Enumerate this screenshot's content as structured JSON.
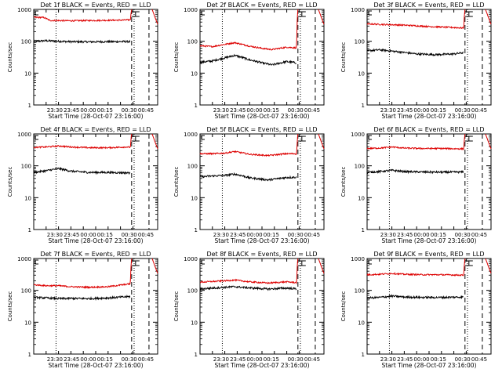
{
  "figure": {
    "background": "#ffffff",
    "colors": {
      "events": "#000000",
      "lld": "#dd0000",
      "axes": "#000000"
    }
  },
  "chart_data": [
    {
      "type": "line",
      "title": "Det 1f BLACK = Events, RED = LLD",
      "xlabel": "Start Time (28-Oct-07 23:16:00)",
      "ylabel": "Counts/sec",
      "yscale": "log",
      "ylim": [
        1,
        1000
      ],
      "yticks": [
        "1",
        "10",
        "100",
        "1000"
      ],
      "xticks": [
        "23:30",
        "23:45",
        "00:00",
        "00:15",
        "00:30",
        "00:45"
      ],
      "series": [
        {
          "role": "events",
          "color": "#000000",
          "points": [
            [
              0.0,
              100
            ],
            [
              0.1,
              104
            ],
            [
              0.2,
              100
            ],
            [
              0.3,
              97
            ],
            [
              0.45,
              96
            ],
            [
              0.6,
              97
            ],
            [
              0.78,
              98
            ]
          ]
        },
        {
          "role": "lld",
          "color": "#dd0000",
          "points": [
            [
              0.0,
              560
            ],
            [
              0.08,
              560
            ],
            [
              0.13,
              450
            ],
            [
              0.3,
              440
            ],
            [
              0.5,
              450
            ],
            [
              0.7,
              460
            ],
            [
              0.78,
              470
            ],
            [
              0.79,
              1000
            ]
          ]
        }
      ]
    },
    {
      "type": "line",
      "title": "Det 2f BLACK = Events, RED = LLD",
      "xlabel": "Start Time (28-Oct-07 23:16:00)",
      "ylabel": "Counts/sec",
      "yscale": "log",
      "ylim": [
        1,
        1000
      ],
      "yticks": [
        "1",
        "10",
        "100",
        "1000"
      ],
      "xticks": [
        "23:30",
        "23:45",
        "00:00",
        "00:15",
        "00:30",
        "00:45"
      ],
      "series": [
        {
          "role": "events",
          "color": "#000000",
          "points": [
            [
              0.0,
              22
            ],
            [
              0.1,
              24
            ],
            [
              0.2,
              30
            ],
            [
              0.28,
              36
            ],
            [
              0.4,
              26
            ],
            [
              0.5,
              21
            ],
            [
              0.58,
              18
            ],
            [
              0.7,
              23
            ],
            [
              0.78,
              21
            ]
          ]
        },
        {
          "role": "lld",
          "color": "#dd0000",
          "points": [
            [
              0.0,
              72
            ],
            [
              0.1,
              68
            ],
            [
              0.2,
              80
            ],
            [
              0.28,
              90
            ],
            [
              0.4,
              70
            ],
            [
              0.5,
              60
            ],
            [
              0.58,
              55
            ],
            [
              0.7,
              65
            ],
            [
              0.78,
              62
            ],
            [
              0.79,
              1000
            ]
          ]
        }
      ]
    },
    {
      "type": "line",
      "title": "Det 3f BLACK = Events, RED = LLD",
      "xlabel": "Start Time (28-Oct-07 23:16:00)",
      "ylabel": "Counts/sec",
      "yscale": "log",
      "ylim": [
        1,
        1000
      ],
      "yticks": [
        "1",
        "10",
        "100",
        "1000"
      ],
      "xticks": [
        "23:30",
        "23:45",
        "00:00",
        "00:15",
        "00:30",
        "00:45"
      ],
      "series": [
        {
          "role": "events",
          "color": "#000000",
          "points": [
            [
              0.0,
              50
            ],
            [
              0.1,
              54
            ],
            [
              0.22,
              48
            ],
            [
              0.4,
              40
            ],
            [
              0.55,
              38
            ],
            [
              0.7,
              40
            ],
            [
              0.78,
              44
            ]
          ]
        },
        {
          "role": "lld",
          "color": "#dd0000",
          "points": [
            [
              0.0,
              350
            ],
            [
              0.1,
              340
            ],
            [
              0.3,
              320
            ],
            [
              0.5,
              290
            ],
            [
              0.7,
              270
            ],
            [
              0.78,
              260
            ],
            [
              0.79,
              1000
            ]
          ]
        }
      ]
    },
    {
      "type": "line",
      "title": "Det 4f BLACK = Events, RED = LLD",
      "xlabel": "Start Time (28-Oct-07 23:16:00)",
      "ylabel": "Counts/sec",
      "yscale": "log",
      "ylim": [
        1,
        1000
      ],
      "yticks": [
        "1",
        "10",
        "100",
        "1000"
      ],
      "xticks": [
        "23:30",
        "23:45",
        "00:00",
        "00:15",
        "00:30",
        "00:45"
      ],
      "series": [
        {
          "role": "events",
          "color": "#000000",
          "points": [
            [
              0.0,
              62
            ],
            [
              0.1,
              70
            ],
            [
              0.2,
              82
            ],
            [
              0.3,
              68
            ],
            [
              0.45,
              62
            ],
            [
              0.6,
              62
            ],
            [
              0.78,
              60
            ]
          ]
        },
        {
          "role": "lld",
          "color": "#dd0000",
          "points": [
            [
              0.0,
              380
            ],
            [
              0.1,
              390
            ],
            [
              0.2,
              420
            ],
            [
              0.3,
              390
            ],
            [
              0.45,
              370
            ],
            [
              0.6,
              370
            ],
            [
              0.75,
              390
            ],
            [
              0.78,
              380
            ],
            [
              0.79,
              1000
            ]
          ]
        }
      ]
    },
    {
      "type": "line",
      "title": "Det 5f BLACK = Events, RED = LLD",
      "xlabel": "Start Time (28-Oct-07 23:16:00)",
      "ylabel": "Counts/sec",
      "yscale": "log",
      "ylim": [
        1,
        1000
      ],
      "yticks": [
        "1",
        "10",
        "100",
        "1000"
      ],
      "xticks": [
        "23:30",
        "23:45",
        "00:00",
        "00:15",
        "00:30",
        "00:45"
      ],
      "series": [
        {
          "role": "events",
          "color": "#000000",
          "points": [
            [
              0.0,
              45
            ],
            [
              0.1,
              48
            ],
            [
              0.2,
              50
            ],
            [
              0.28,
              55
            ],
            [
              0.4,
              42
            ],
            [
              0.55,
              36
            ],
            [
              0.7,
              43
            ],
            [
              0.78,
              44
            ]
          ]
        },
        {
          "role": "lld",
          "color": "#dd0000",
          "points": [
            [
              0.0,
              240
            ],
            [
              0.1,
              240
            ],
            [
              0.2,
              250
            ],
            [
              0.28,
              280
            ],
            [
              0.4,
              230
            ],
            [
              0.55,
              210
            ],
            [
              0.7,
              240
            ],
            [
              0.78,
              240
            ],
            [
              0.79,
              1000
            ]
          ]
        }
      ]
    },
    {
      "type": "line",
      "title": "Det 6f BLACK = Events, RED = LLD",
      "xlabel": "Start Time (28-Oct-07 23:16:00)",
      "ylabel": "Counts/sec",
      "yscale": "log",
      "ylim": [
        1,
        1000
      ],
      "yticks": [
        "1",
        "10",
        "100",
        "1000"
      ],
      "xticks": [
        "23:30",
        "23:45",
        "00:00",
        "00:15",
        "00:30",
        "00:45"
      ],
      "series": [
        {
          "role": "events",
          "color": "#000000",
          "points": [
            [
              0.0,
              62
            ],
            [
              0.1,
              66
            ],
            [
              0.2,
              72
            ],
            [
              0.3,
              66
            ],
            [
              0.45,
              64
            ],
            [
              0.6,
              63
            ],
            [
              0.78,
              64
            ]
          ]
        },
        {
          "role": "lld",
          "color": "#dd0000",
          "points": [
            [
              0.0,
              350
            ],
            [
              0.1,
              360
            ],
            [
              0.2,
              390
            ],
            [
              0.3,
              360
            ],
            [
              0.45,
              350
            ],
            [
              0.6,
              350
            ],
            [
              0.78,
              340
            ],
            [
              0.79,
              1000
            ]
          ]
        }
      ]
    },
    {
      "type": "line",
      "title": "Det 7f BLACK = Events, RED = LLD",
      "xlabel": "Start Time (28-Oct-07 23:16:00)",
      "ylabel": "Counts/sec",
      "yscale": "log",
      "ylim": [
        1,
        1000
      ],
      "yticks": [
        "1",
        "10",
        "100",
        "1000"
      ],
      "xticks": [
        "23:30",
        "23:45",
        "00:00",
        "00:15",
        "00:30",
        "00:45"
      ],
      "series": [
        {
          "role": "events",
          "color": "#000000",
          "points": [
            [
              0.0,
              60
            ],
            [
              0.1,
              58
            ],
            [
              0.2,
              55
            ],
            [
              0.3,
              56
            ],
            [
              0.45,
              55
            ],
            [
              0.6,
              58
            ],
            [
              0.78,
              64
            ]
          ]
        },
        {
          "role": "lld",
          "color": "#dd0000",
          "points": [
            [
              0.0,
              150
            ],
            [
              0.1,
              140
            ],
            [
              0.2,
              140
            ],
            [
              0.3,
              130
            ],
            [
              0.45,
              125
            ],
            [
              0.6,
              130
            ],
            [
              0.78,
              160
            ],
            [
              0.79,
              1000
            ]
          ]
        }
      ]
    },
    {
      "type": "line",
      "title": "Det 8f BLACK = Events, RED = LLD",
      "xlabel": "Start Time (28-Oct-07 23:16:00)",
      "ylabel": "Counts/sec",
      "yscale": "log",
      "ylim": [
        1,
        1000
      ],
      "yticks": [
        "1",
        "10",
        "100",
        "1000"
      ],
      "xticks": [
        "23:30",
        "23:45",
        "00:00",
        "00:15",
        "00:30",
        "00:45"
      ],
      "series": [
        {
          "role": "events",
          "color": "#000000",
          "points": [
            [
              0.0,
              110
            ],
            [
              0.1,
              118
            ],
            [
              0.2,
              125
            ],
            [
              0.28,
              130
            ],
            [
              0.4,
              120
            ],
            [
              0.55,
              110
            ],
            [
              0.7,
              118
            ],
            [
              0.78,
              112
            ]
          ]
        },
        {
          "role": "lld",
          "color": "#dd0000",
          "points": [
            [
              0.0,
              180
            ],
            [
              0.1,
              190
            ],
            [
              0.2,
              200
            ],
            [
              0.28,
              210
            ],
            [
              0.4,
              185
            ],
            [
              0.55,
              170
            ],
            [
              0.7,
              185
            ],
            [
              0.78,
              175
            ],
            [
              0.79,
              1000
            ]
          ]
        }
      ]
    },
    {
      "type": "line",
      "title": "Det 9f BLACK = Events, RED = LLD",
      "xlabel": "Start Time (28-Oct-07 23:16:00)",
      "ylabel": "Counts/sec",
      "yscale": "log",
      "ylim": [
        1,
        1000
      ],
      "yticks": [
        "1",
        "10",
        "100",
        "1000"
      ],
      "xticks": [
        "23:30",
        "23:45",
        "00:00",
        "00:15",
        "00:30",
        "00:45"
      ],
      "series": [
        {
          "role": "events",
          "color": "#000000",
          "points": [
            [
              0.0,
              58
            ],
            [
              0.1,
              60
            ],
            [
              0.2,
              66
            ],
            [
              0.3,
              62
            ],
            [
              0.45,
              60
            ],
            [
              0.6,
              60
            ],
            [
              0.78,
              62
            ]
          ]
        },
        {
          "role": "lld",
          "color": "#dd0000",
          "points": [
            [
              0.0,
              310
            ],
            [
              0.1,
              320
            ],
            [
              0.2,
              340
            ],
            [
              0.3,
              320
            ],
            [
              0.45,
              310
            ],
            [
              0.6,
              310
            ],
            [
              0.78,
              300
            ],
            [
              0.79,
              1000
            ]
          ]
        }
      ]
    }
  ]
}
